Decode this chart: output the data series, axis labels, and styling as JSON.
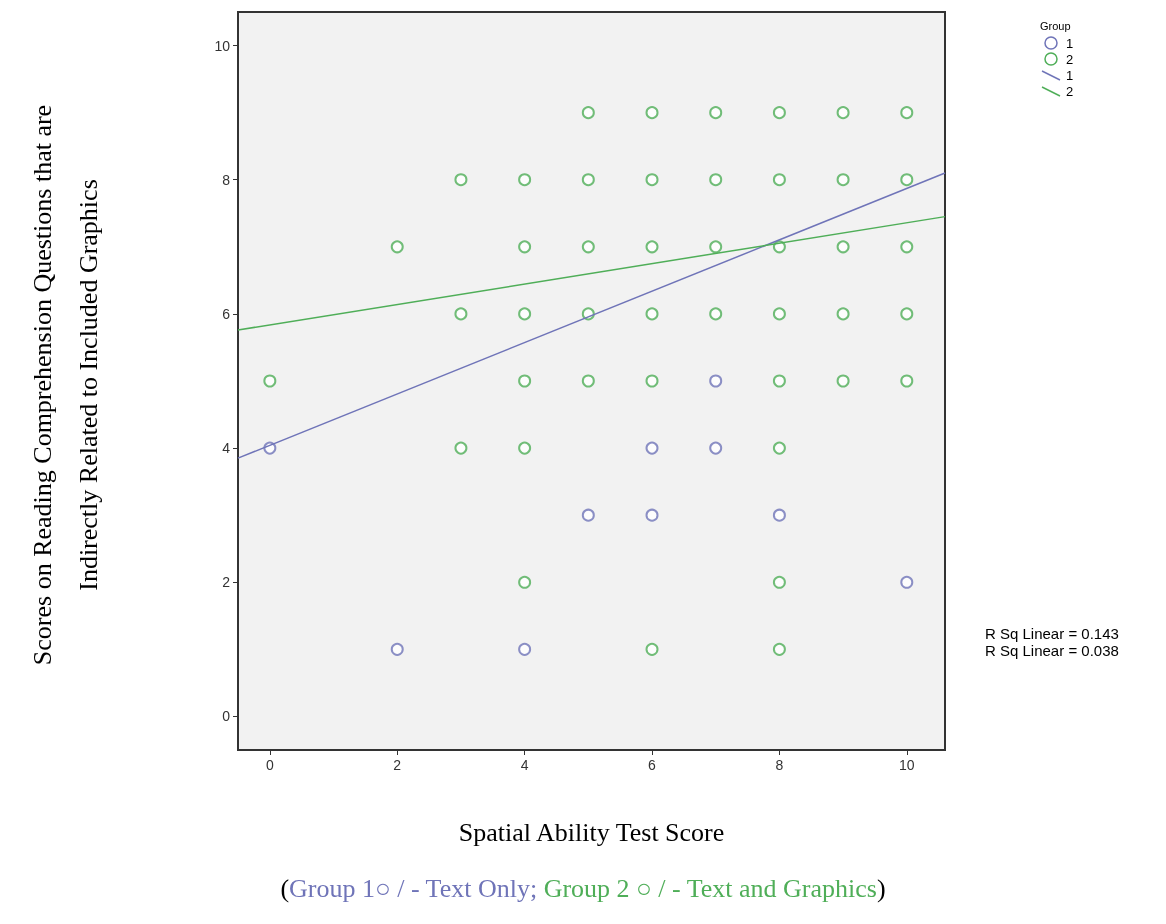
{
  "chart_data": {
    "type": "scatter",
    "xlabel": "Spatial Ability Test Score",
    "ylabel": "Scores on Reading Comprehension Questions that are Indirectly Related to Included Graphics",
    "legend_title": "Group",
    "legend": "top right",
    "marker": "circle",
    "grid": false,
    "xlim": [
      -0.5,
      10.6
    ],
    "xticks": [
      0,
      2,
      4,
      6,
      8,
      10
    ],
    "ylim": [
      -0.5,
      10.5
    ],
    "yticks": [
      0,
      2,
      4,
      6,
      8,
      10
    ],
    "annotations": [
      "R Sq Linear = 0.143",
      "R Sq Linear = 0.038",
      "(Group 1○ / - Text Only; Group 2 ○ / - Text and Graphics)"
    ],
    "series": [
      {
        "name": "1",
        "color": "#6f74b8",
        "x": [
          0,
          2,
          4,
          5,
          6,
          6,
          7,
          7,
          8,
          10
        ],
        "values": [
          4,
          1,
          1,
          3,
          3,
          4,
          4,
          5,
          3,
          2
        ]
      },
      {
        "name": "2",
        "color": "#4fae58",
        "x": [
          5,
          6,
          7,
          8,
          9,
          10,
          3,
          4,
          5,
          6,
          7,
          8,
          9,
          10,
          2,
          4,
          5,
          6,
          7,
          8,
          9,
          10,
          3,
          4,
          5,
          6,
          7,
          8,
          9,
          10,
          0,
          4,
          5,
          6,
          8,
          9,
          10,
          3,
          4,
          8,
          4,
          8,
          6,
          8
        ],
        "values": [
          9,
          9,
          9,
          9,
          9,
          9,
          8,
          8,
          8,
          8,
          8,
          8,
          8,
          8,
          7,
          7,
          7,
          7,
          7,
          7,
          7,
          7,
          6,
          6,
          6,
          6,
          6,
          6,
          6,
          6,
          5,
          5,
          5,
          5,
          5,
          5,
          5,
          4,
          4,
          4,
          2,
          2,
          1,
          1
        ]
      },
      {
        "name": "1",
        "type": "line",
        "marker": "none",
        "color": "#6f74b8",
        "x": [
          -0.5,
          10.6
        ],
        "values": [
          3.85,
          8.1
        ]
      },
      {
        "name": "2",
        "type": "line",
        "marker": "none",
        "color": "#4fae58",
        "x": [
          -0.5,
          10.6
        ],
        "values": [
          5.76,
          7.45
        ]
      }
    ]
  }
}
